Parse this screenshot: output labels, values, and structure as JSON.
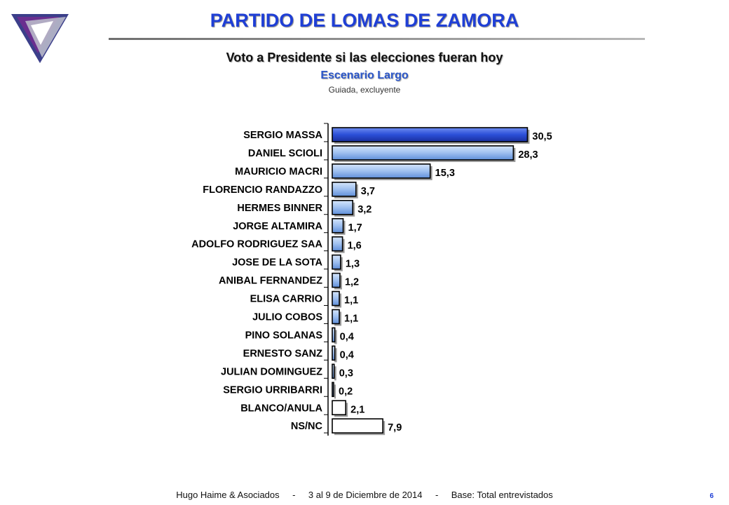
{
  "header": {
    "title": "PARTIDO DE LOMAS DE ZAMORA",
    "subtitle": "Voto a Presidente si las elecciones fueran hoy",
    "scenario": "Escenario Largo",
    "note": "Guiada, excluyente"
  },
  "footer": {
    "source": "Hugo Haime & Asociados",
    "sep": "-",
    "dates": "3 al  9 de  Diciembre de  2014",
    "base": "Base: Total entrevistados",
    "page": "6"
  },
  "colors": {
    "accent": "#1f3fd6",
    "bar_top": "#2b4fd8",
    "bar_main": "#9fc0f0",
    "bar_empty": "#ffffff"
  },
  "chart_data": {
    "type": "bar",
    "orientation": "horizontal",
    "categories": [
      "SERGIO MASSA",
      "DANIEL SCIOLI",
      "MAURICIO MACRI",
      "FLORENCIO RANDAZZO",
      "HERMES BINNER",
      "JORGE ALTAMIRA",
      "ADOLFO RODRIGUEZ SAA",
      "JOSE DE LA SOTA",
      "ANIBAL FERNANDEZ",
      "ELISA CARRIO",
      "JULIO COBOS",
      "PINO SOLANAS",
      "ERNESTO SANZ",
      "JULIAN DOMINGUEZ",
      "SERGIO URRIBARRI",
      "BLANCO/ANULA",
      "NS/NC"
    ],
    "values": [
      30.5,
      28.3,
      15.3,
      3.7,
      3.2,
      1.7,
      1.6,
      1.3,
      1.2,
      1.1,
      1.1,
      0.4,
      0.4,
      0.3,
      0.2,
      2.1,
      7.9
    ],
    "labels": [
      "30,5",
      "28,3",
      "15,3",
      "3,7",
      "3,2",
      "1,7",
      "1,6",
      "1,3",
      "1,2",
      "1,1",
      "1,1",
      "0,4",
      "0,4",
      "0,3",
      "0,2",
      "2,1",
      "7,9"
    ],
    "styles": [
      "highlight",
      "gradient",
      "gradient",
      "gradient",
      "gradient",
      "gradient",
      "gradient",
      "gradient",
      "gradient",
      "gradient",
      "gradient",
      "gradient",
      "gradient",
      "gradient",
      "gradient",
      "empty",
      "empty"
    ],
    "xlim": [
      0,
      31
    ],
    "grid": false,
    "legend": "none"
  }
}
